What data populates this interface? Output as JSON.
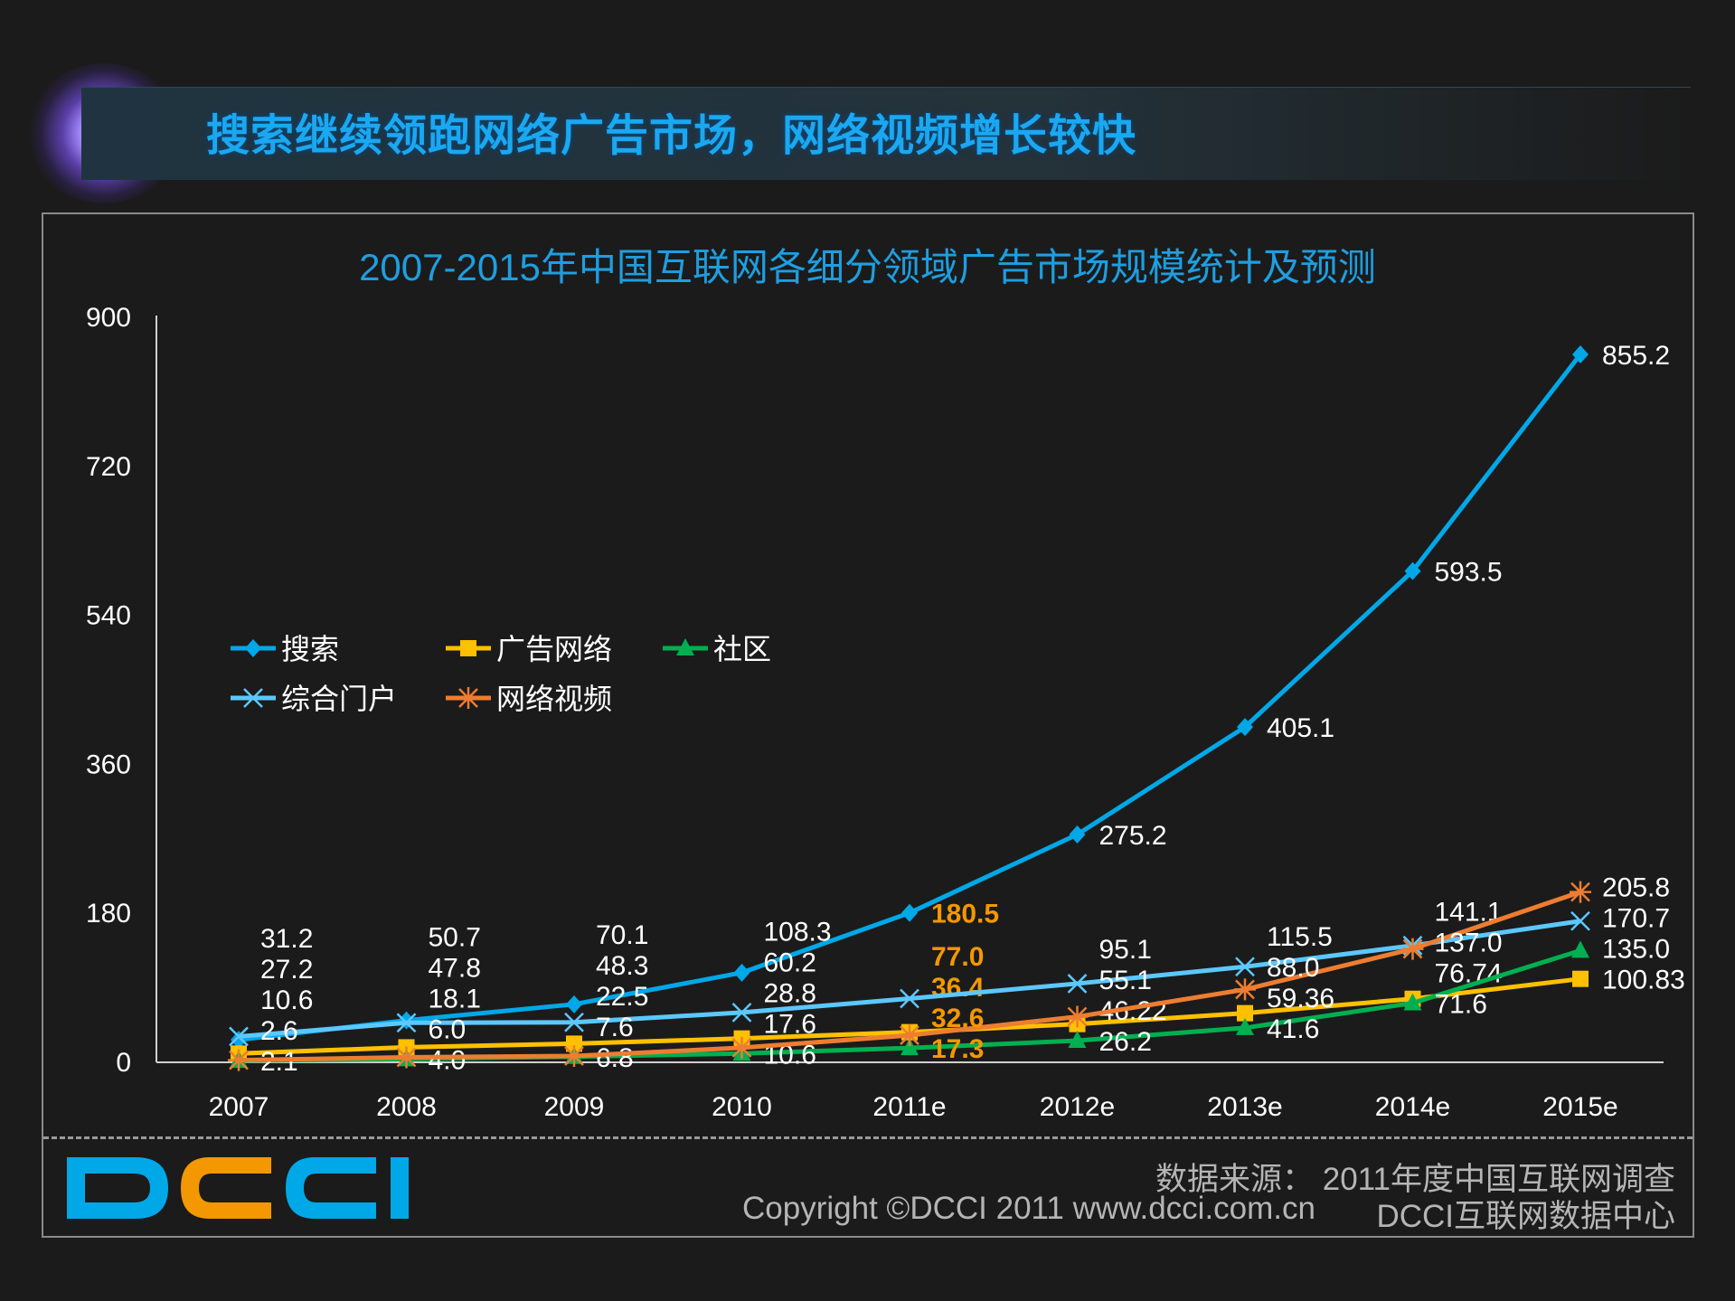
{
  "banner": {
    "title": "搜索继续领跑网络广告市场，网络视频增长较快"
  },
  "chart_data": {
    "type": "line",
    "title": "2007-2015年中国互联网各细分领域广告市场规模统计及预测",
    "categories": [
      "2007",
      "2008",
      "2009",
      "2010",
      "2011e",
      "2012e",
      "2013e",
      "2014e",
      "2015e"
    ],
    "ylim": [
      0,
      900
    ],
    "yticks": [
      0,
      180,
      360,
      540,
      720,
      900
    ],
    "grid": false,
    "legend_position": "upper-left",
    "highlight_category": "2011e",
    "highlight_color": "#f39800",
    "series": [
      {
        "name": "搜索",
        "color": "#00a8e8",
        "marker": "diamond",
        "values": [
          27.2,
          50.7,
          70.1,
          108.3,
          180.5,
          275.2,
          405.1,
          593.5,
          855.2
        ],
        "labels": [
          "27.2",
          "50.7",
          "70.1",
          "108.3",
          "180.5",
          "275.2",
          "405.1",
          "593.5",
          "855.2"
        ]
      },
      {
        "name": "广告网络",
        "color": "#ffc000",
        "marker": "square",
        "values": [
          10.6,
          18.1,
          22.5,
          28.8,
          36.4,
          46.22,
          59.36,
          76.74,
          100.83
        ],
        "labels": [
          "10.6",
          "18.1",
          "22.5",
          "28.8",
          "36.4",
          "46.22",
          "59.36",
          "76.74",
          "100.83"
        ]
      },
      {
        "name": "社区",
        "color": "#00b050",
        "marker": "triangle",
        "values": [
          2.1,
          4.0,
          6.8,
          10.6,
          17.3,
          26.2,
          41.6,
          71.6,
          135.0
        ],
        "labels": [
          "2.1",
          "4.0",
          "6.8",
          "10.6",
          "17.3",
          "26.2",
          "41.6",
          "71.6",
          "135.0"
        ]
      },
      {
        "name": "综合门户",
        "color": "#5bc8ff",
        "marker": "x",
        "values": [
          31.2,
          47.8,
          48.3,
          60.2,
          77.0,
          95.1,
          115.5,
          141.1,
          170.7
        ],
        "labels": [
          "31.2",
          "47.8",
          "48.3",
          "60.2",
          "77.0",
          "95.1",
          "115.5",
          "141.1",
          "170.7"
        ]
      },
      {
        "name": "网络视频",
        "color": "#ed7d31",
        "marker": "asterisk",
        "values": [
          2.6,
          6.0,
          7.6,
          17.6,
          32.6,
          55.1,
          88.0,
          137.0,
          205.8
        ],
        "labels": [
          "2.6",
          "6.0",
          "7.6",
          "17.6",
          "32.6",
          "55.1",
          "88.0",
          "137.0",
          "205.8"
        ]
      }
    ]
  },
  "footer": {
    "logo": "DCCI",
    "source": "数据来源： 2011年度中国互联网调查",
    "copyright": "Copyright ©DCCI 2011 www.dcci.com.cn",
    "org": "DCCI互联网数据中心"
  }
}
